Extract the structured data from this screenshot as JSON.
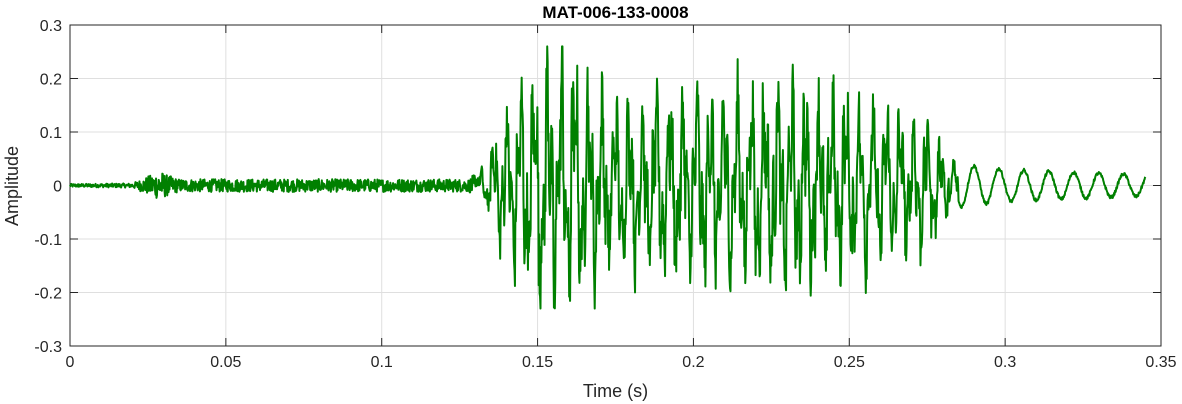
{
  "chart_data": {
    "type": "line",
    "title": "MAT-006-133-0008",
    "xlabel": "Time (s)",
    "ylabel": "Amplitude",
    "xlim": [
      0,
      0.35
    ],
    "ylim": [
      -0.3,
      0.3
    ],
    "xticks": [
      0,
      0.05,
      0.1,
      0.15,
      0.2,
      0.25,
      0.3,
      0.35
    ],
    "xtick_labels": [
      "0",
      "0.05",
      "0.1",
      "0.15",
      "0.2",
      "0.25",
      "0.3",
      "0.35"
    ],
    "yticks": [
      -0.3,
      -0.2,
      -0.1,
      0,
      0.1,
      0.2,
      0.3
    ],
    "ytick_labels": [
      "-0.3",
      "-0.2",
      "-0.1",
      "0",
      "0.1",
      "0.2",
      "0.3"
    ],
    "grid": true,
    "series": [
      {
        "color": "#008000",
        "x_end": 0.345,
        "envelope_time": [
          0,
          0.02,
          0.029,
          0.031,
          0.035,
          0.06,
          0.1,
          0.128,
          0.133,
          0.138,
          0.145,
          0.15,
          0.155,
          0.162,
          0.168,
          0.175,
          0.19,
          0.21,
          0.23,
          0.25,
          0.265,
          0.275,
          0.28,
          0.285,
          0.3,
          0.32,
          0.345
        ],
        "envelope_amplitude": [
          0.003,
          0.004,
          0.028,
          0.02,
          0.012,
          0.012,
          0.012,
          0.012,
          0.04,
          0.13,
          0.2,
          0.24,
          0.25,
          0.25,
          0.2,
          0.16,
          0.18,
          0.19,
          0.2,
          0.18,
          0.15,
          0.13,
          0.08,
          0.04,
          0.03,
          0.025,
          0.02
        ],
        "carrier_frequency_hz": 230,
        "tail_frequency_hz": 125
      }
    ]
  }
}
